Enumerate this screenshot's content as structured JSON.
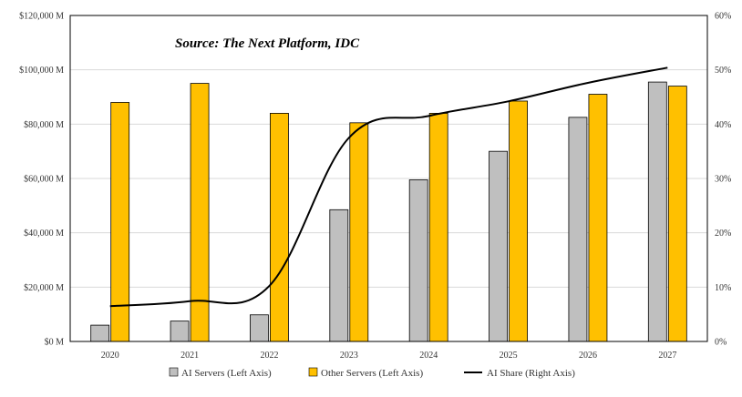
{
  "chart_data": {
    "type": "bar",
    "annotation": "Source: The Next Platform, IDC",
    "categories": [
      "2020",
      "2021",
      "2022",
      "2023",
      "2024",
      "2025",
      "2026",
      "2027"
    ],
    "series": [
      {
        "name": "AI Servers (Left Axis)",
        "type": "bar",
        "axis": "left",
        "color": "#bfbfbf",
        "values": [
          6000,
          7500,
          9800,
          48500,
          59500,
          70000,
          82500,
          95500
        ]
      },
      {
        "name": "Other Servers (Left Axis)",
        "type": "bar",
        "axis": "left",
        "color": "#ffc000",
        "values": [
          88000,
          95000,
          84000,
          80500,
          84000,
          88500,
          91000,
          94000
        ]
      },
      {
        "name": "AI Share (Right Axis)",
        "type": "line",
        "axis": "right",
        "color": "#000000",
        "values": [
          6.5,
          7.4,
          10.2,
          37.5,
          41.5,
          44.2,
          47.6,
          50.4
        ]
      }
    ],
    "y_left": {
      "range": [
        0,
        120000
      ],
      "ticks": [
        0,
        20000,
        40000,
        60000,
        80000,
        100000,
        120000
      ],
      "tick_labels": [
        "$0 M",
        "$20,000 M",
        "$40,000 M",
        "$60,000 M",
        "$80,000 M",
        "$100,000 M",
        "$120,000 M"
      ]
    },
    "y_right": {
      "range": [
        0,
        60
      ],
      "ticks": [
        0,
        10,
        20,
        30,
        40,
        50,
        60
      ],
      "tick_labels": [
        "0%",
        "10%",
        "20%",
        "30%",
        "40%",
        "50%",
        "60%"
      ]
    },
    "grid": "horizontal",
    "legend_position": "bottom"
  }
}
